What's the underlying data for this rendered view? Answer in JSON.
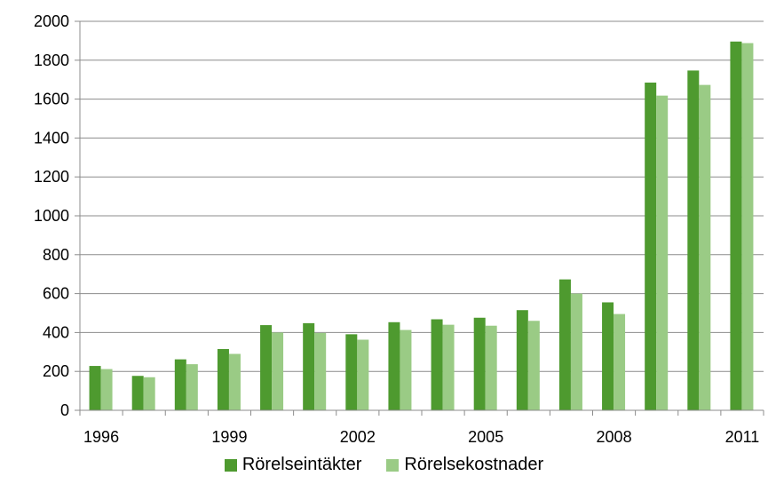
{
  "chart_data": {
    "type": "bar",
    "categories": [
      "1996",
      "1997",
      "1998",
      "1999",
      "2000",
      "2001",
      "2002",
      "2003",
      "2004",
      "2005",
      "2006",
      "2007",
      "2008",
      "2009",
      "2010",
      "2011"
    ],
    "x_tick_labels": [
      "1996",
      "1999",
      "2002",
      "2005",
      "2008",
      "2011"
    ],
    "y_tick_labels": [
      "0",
      "200",
      "400",
      "600",
      "800",
      "1000",
      "1200",
      "1400",
      "1600",
      "1800",
      "2000"
    ],
    "ylim": [
      0,
      2000
    ],
    "grid": true,
    "legend_position": "bottom",
    "series": [
      {
        "name": "Rörelseintäkter",
        "color": "#4e9a2f",
        "values": [
          228,
          177,
          262,
          315,
          438,
          448,
          391,
          453,
          468,
          476,
          515,
          673,
          555,
          1685,
          1747,
          1896
        ]
      },
      {
        "name": "Rörelsekostnader",
        "color": "#9acb85",
        "values": [
          212,
          170,
          237,
          290,
          400,
          398,
          363,
          413,
          440,
          435,
          460,
          600,
          495,
          1618,
          1673,
          1888
        ]
      }
    ]
  }
}
